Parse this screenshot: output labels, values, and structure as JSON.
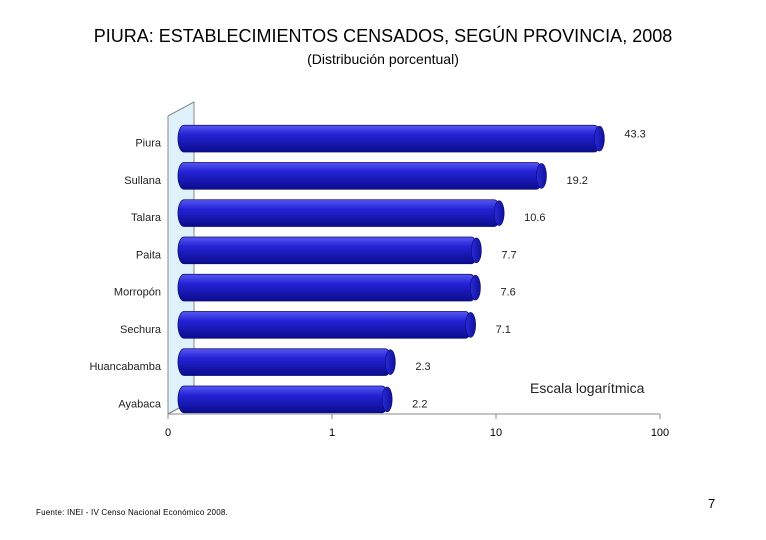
{
  "title": "PIURA: ESTABLECIMIENTOS CENSADOS, SEGÚN PROVINCIA, 2008",
  "subtitle": "(Distribución porcentual)",
  "source": "Fuente: INEI - IV Censo Nacional Económico 2008.",
  "page_number": "7",
  "chart_data": {
    "type": "bar",
    "orientation": "horizontal",
    "scale": "log",
    "categories": [
      "Piura",
      "Sullana",
      "Talara",
      "Paita",
      "Morropón",
      "Sechura",
      "Huancabamba",
      "Ayabaca"
    ],
    "values": [
      43.3,
      19.2,
      10.6,
      7.7,
      7.6,
      7.1,
      2.3,
      2.2
    ],
    "value_labels": [
      "43.3",
      "19.2",
      "10.6",
      "7.7",
      "7.6",
      "7.1",
      "2.3",
      "2.2"
    ],
    "x_ticks": [
      "0",
      "1",
      "10",
      "100"
    ],
    "annotation": "Escala logarítmica",
    "colors": {
      "bar": "#1c1ccf",
      "bar_dark": "#0a0a7a",
      "bar_light": "#4a4aee",
      "wall": "#dff1fb",
      "axis": "#888888"
    }
  }
}
